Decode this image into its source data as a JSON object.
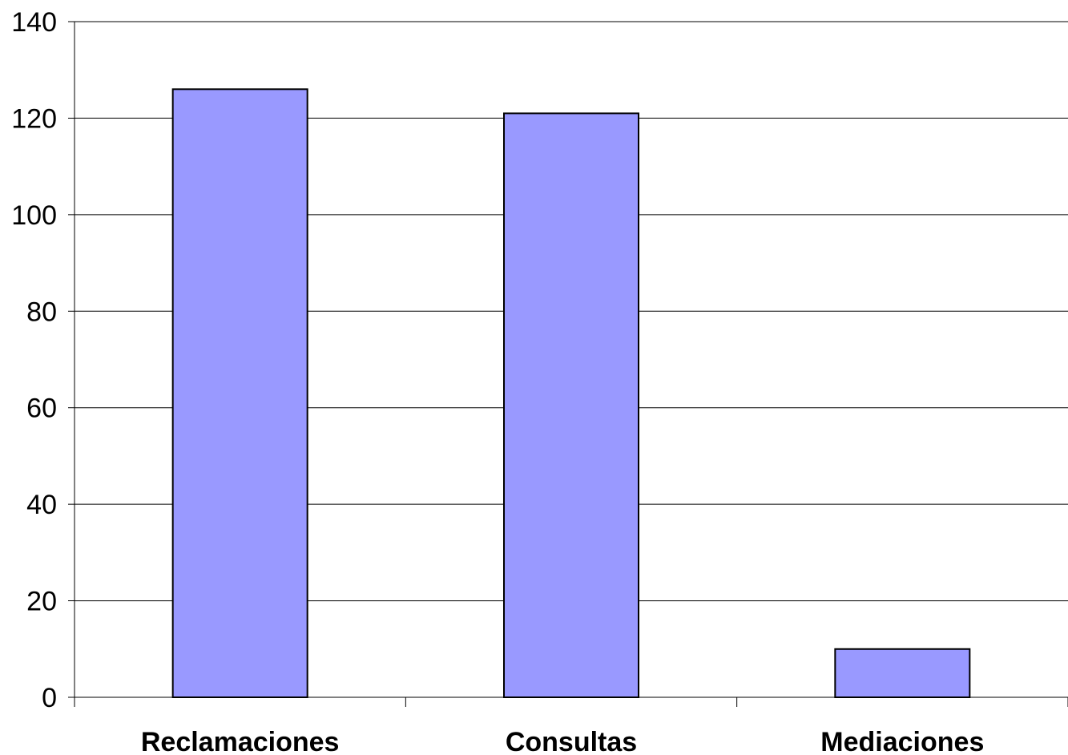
{
  "chart_data": {
    "type": "bar",
    "categories": [
      "Reclamaciones",
      "Consultas",
      "Mediaciones"
    ],
    "values": [
      126,
      121,
      10
    ],
    "ylim": [
      0,
      140
    ],
    "yticks": [
      0,
      20,
      40,
      60,
      80,
      100,
      120,
      140
    ],
    "ytick_labels": [
      "0",
      "20",
      "40",
      "60",
      "80",
      "100",
      "120",
      "140"
    ],
    "title": "",
    "xlabel": "",
    "ylabel": "",
    "grid": true,
    "legend": "none",
    "colors": {
      "bar_fill": "#9999ff",
      "bar_stroke": "#000000",
      "gridline": "#000000",
      "axis": "#000000",
      "background": "#ffffff"
    }
  }
}
